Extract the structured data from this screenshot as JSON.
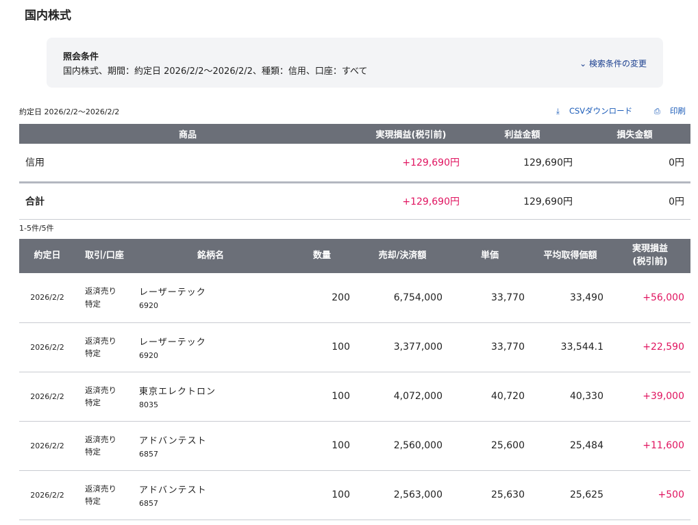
{
  "page": {
    "title": "国内株式"
  },
  "conditions": {
    "heading": "照会条件",
    "text": "国内株式、期間：約定日 2026/2/2〜2026/2/2、種類：信用、口座：すべて",
    "change_label": "検索条件の変更"
  },
  "date_range": "約定日 2026/2/2〜2026/2/2",
  "actions": {
    "csv": "CSVダウンロード",
    "print": "印刷"
  },
  "summary": {
    "headers": [
      "商品",
      "実現損益(税引前)",
      "利益金額",
      "損失金額"
    ],
    "rows": [
      {
        "product": "信用",
        "realized": "+129,690円",
        "profit": "129,690円",
        "loss": "0円"
      },
      {
        "product": "合計",
        "realized": "+129,690円",
        "profit": "129,690円",
        "loss": "0円"
      }
    ]
  },
  "count": "1-5件/5件",
  "details": {
    "headers": [
      "約定日",
      "取引/口座",
      "銘柄名",
      "数量",
      "売却/決済額",
      "単価",
      "平均取得価額",
      "実現損益",
      "(税引前)"
    ],
    "rows": [
      {
        "date": "2026/2/2",
        "trade": "返済売り",
        "account": "特定",
        "name": "レーザーテック",
        "code": "6920",
        "qty": "200",
        "amount": "6,754,000",
        "price": "33,770",
        "avg": "33,490",
        "pl": "+56,000"
      },
      {
        "date": "2026/2/2",
        "trade": "返済売り",
        "account": "特定",
        "name": "レーザーテック",
        "code": "6920",
        "qty": "100",
        "amount": "3,377,000",
        "price": "33,770",
        "avg": "33,544.1",
        "pl": "+22,590"
      },
      {
        "date": "2026/2/2",
        "trade": "返済売り",
        "account": "特定",
        "name": "東京エレクトロン",
        "code": "8035",
        "qty": "100",
        "amount": "4,072,000",
        "price": "40,720",
        "avg": "40,330",
        "pl": "+39,000"
      },
      {
        "date": "2026/2/2",
        "trade": "返済売り",
        "account": "特定",
        "name": "アドバンテスト",
        "code": "6857",
        "qty": "100",
        "amount": "2,560,000",
        "price": "25,600",
        "avg": "25,484",
        "pl": "+11,600"
      },
      {
        "date": "2026/2/2",
        "trade": "返済売り",
        "account": "特定",
        "name": "アドバンテスト",
        "code": "6857",
        "qty": "100",
        "amount": "2,563,000",
        "price": "25,630",
        "avg": "25,625",
        "pl": "+500"
      }
    ]
  },
  "colors": {
    "header_bg": "#6b6f78",
    "positive": "#e0135f",
    "link": "#1a5bb8"
  }
}
